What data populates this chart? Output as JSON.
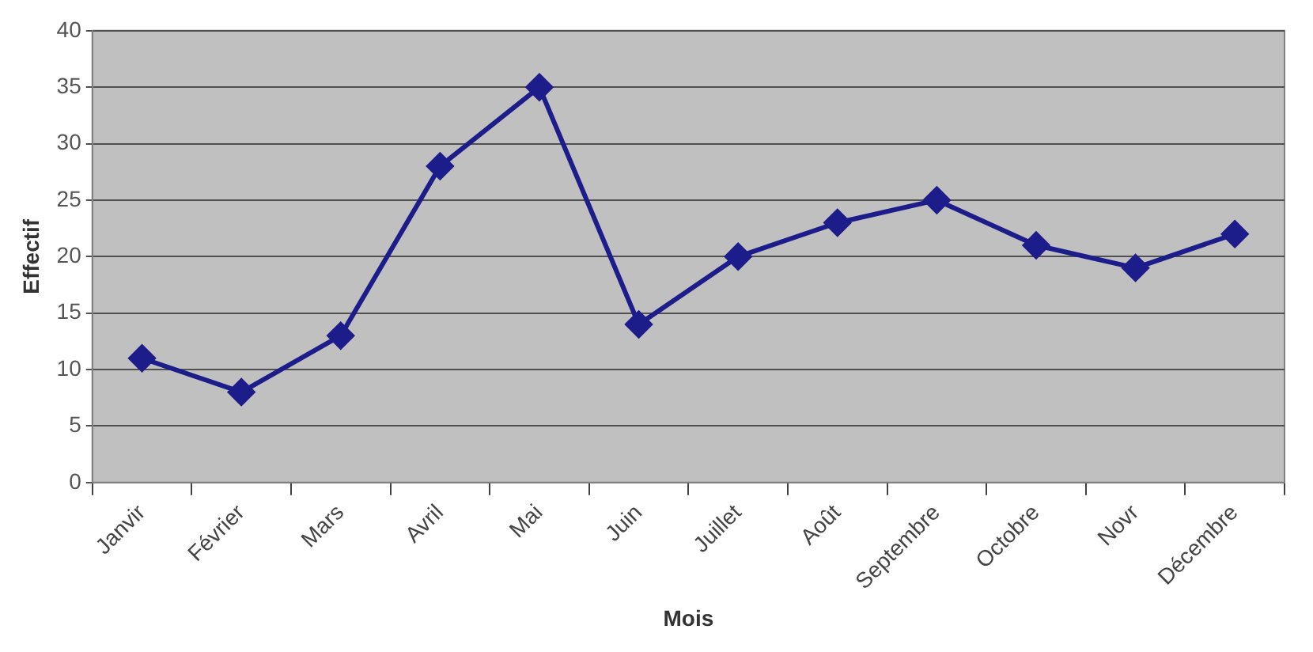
{
  "chart_data": {
    "type": "line",
    "xlabel": "Mois",
    "ylabel": "Effectif",
    "categories": [
      "Janvir",
      "Février",
      "Mars",
      "Avril",
      "Mai",
      "Juin",
      "Juillet",
      "Août",
      "Septembre",
      "Octobre",
      "Novr",
      "Décembre"
    ],
    "series": [
      {
        "color": "#1c1c8a",
        "values": [
          11,
          8,
          13,
          28,
          35,
          14,
          20,
          23,
          25,
          21,
          19,
          22
        ]
      }
    ],
    "ylim": [
      0,
      40
    ],
    "yticks": [
      0,
      5,
      10,
      15,
      20,
      25,
      30,
      35,
      40
    ],
    "grid": "y",
    "legend": false,
    "marker": "diamond",
    "line_style": "solid"
  }
}
